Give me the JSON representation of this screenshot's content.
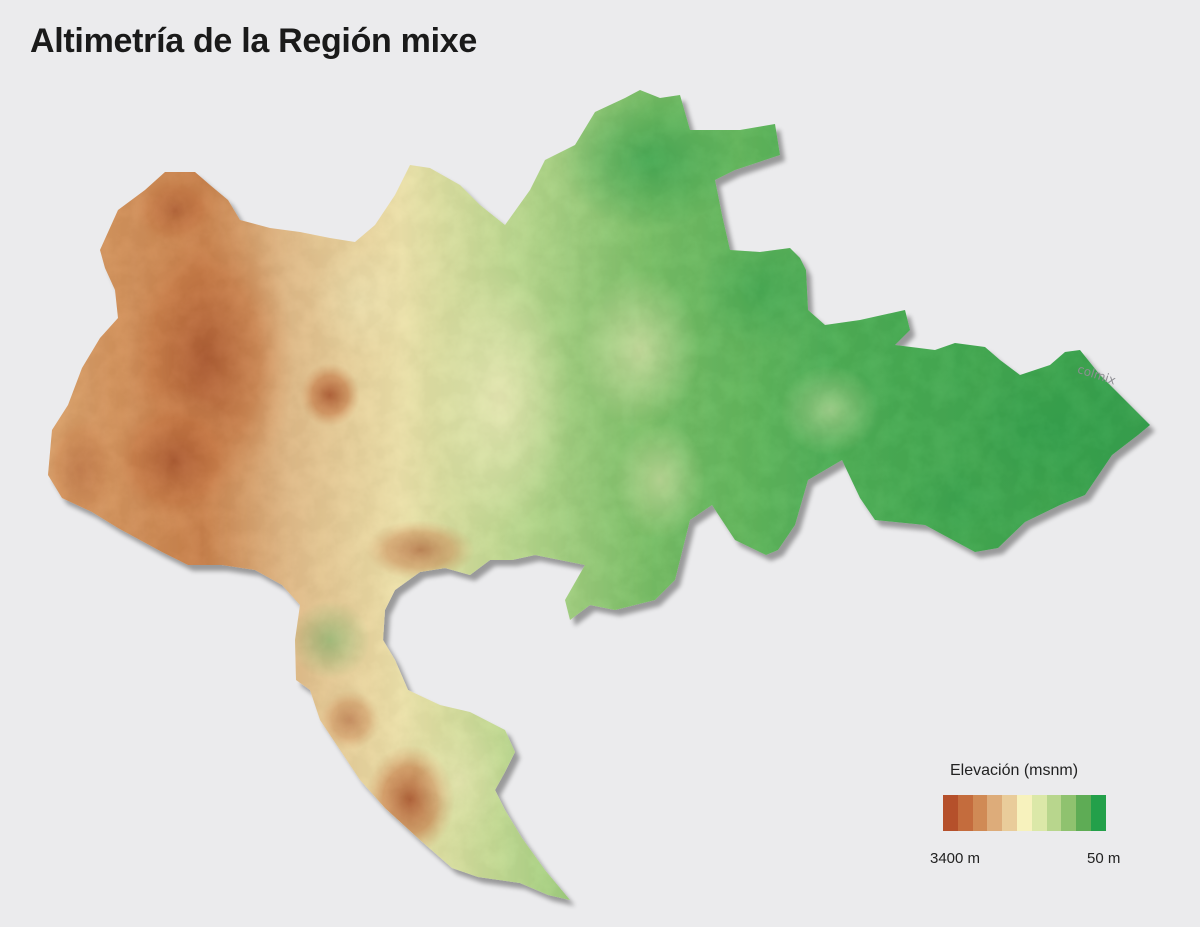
{
  "title": "Altimetría de la Región mixe",
  "watermark": "colmix",
  "legend": {
    "title": "Elevación (msnm)",
    "min_label": "3400 m",
    "max_label": "50 m",
    "colors": [
      "#b5502b",
      "#c46c3d",
      "#d08a55",
      "#ddac7a",
      "#e9cc9a",
      "#f7f2bd",
      "#dbe8a8",
      "#b8d68d",
      "#8fc26f",
      "#5eac55",
      "#23a04a"
    ]
  }
}
